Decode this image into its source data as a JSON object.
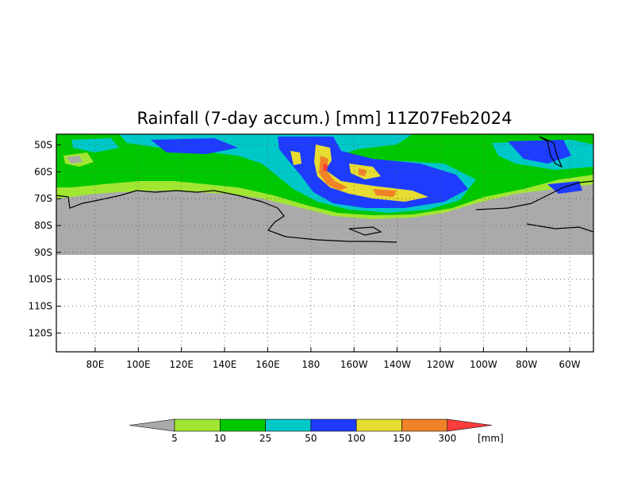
{
  "map": {
    "title": "Rainfall (7-day accum.) [mm] 11Z07Feb2024",
    "lat_labels": [
      "50S",
      "60S",
      "70S",
      "80S",
      "90S",
      "100S",
      "110S",
      "120S"
    ],
    "lat_values": [
      -50,
      -60,
      -70,
      -80,
      -90,
      -100,
      -110,
      -120
    ],
    "lon_labels": [
      "80E",
      "100E",
      "120E",
      "140E",
      "160E",
      "180",
      "160W",
      "140W",
      "120W",
      "100W",
      "80W",
      "60W"
    ],
    "lon_values": [
      80,
      100,
      120,
      140,
      160,
      180,
      200,
      220,
      240,
      260,
      280,
      300
    ],
    "lon_range": [
      62,
      311
    ],
    "lat_range": [
      -127,
      -46
    ],
    "land_color": "#aaaaaa"
  },
  "colorbar": {
    "levels": [
      "5",
      "10",
      "25",
      "50",
      "100",
      "150",
      "300"
    ],
    "unit": "[mm]",
    "colors": [
      "#aaaaaa",
      "#a0e632",
      "#00c800",
      "#00c8c8",
      "#1e3cff",
      "#e6dc32",
      "#f08228",
      "#fa3c3c"
    ]
  }
}
